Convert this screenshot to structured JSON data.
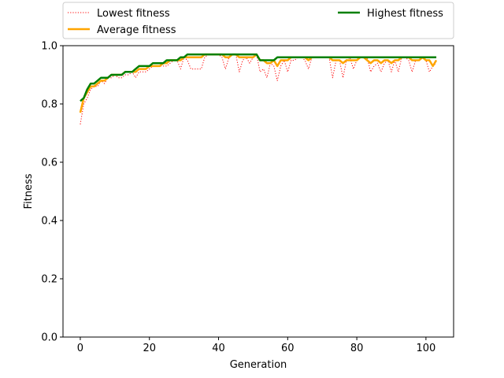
{
  "chart_data": {
    "type": "line",
    "xlabel": "Generation",
    "ylabel": "Fitness",
    "xlim": [
      -5,
      108
    ],
    "ylim": [
      0.0,
      1.0
    ],
    "xticks": [
      0,
      20,
      40,
      60,
      80,
      100
    ],
    "yticks": [
      0.0,
      0.2,
      0.4,
      0.6,
      0.8,
      1.0
    ],
    "xtick_labels": [
      "0",
      "20",
      "40",
      "60",
      "80",
      "100"
    ],
    "ytick_labels": [
      "0.0",
      "0.2",
      "0.4",
      "0.6",
      "0.8",
      "1.0"
    ],
    "grid": false,
    "legend_placement": "above plot",
    "x": [
      0,
      1,
      2,
      3,
      4,
      5,
      6,
      7,
      8,
      9,
      10,
      11,
      12,
      13,
      14,
      15,
      16,
      17,
      18,
      19,
      20,
      21,
      22,
      23,
      24,
      25,
      26,
      27,
      28,
      29,
      30,
      31,
      32,
      33,
      34,
      35,
      36,
      37,
      38,
      39,
      40,
      41,
      42,
      43,
      44,
      45,
      46,
      47,
      48,
      49,
      50,
      51,
      52,
      53,
      54,
      55,
      56,
      57,
      58,
      59,
      60,
      61,
      62,
      63,
      64,
      65,
      66,
      67,
      68,
      69,
      70,
      71,
      72,
      73,
      74,
      75,
      76,
      77,
      78,
      79,
      80,
      81,
      82,
      83,
      84,
      85,
      86,
      87,
      88,
      89,
      90,
      91,
      92,
      93,
      94,
      95,
      96,
      97,
      98,
      99,
      100,
      101,
      102,
      103
    ],
    "series": [
      {
        "name": "Lowest fitness",
        "color": "#ff0000",
        "style": "dotted",
        "values": [
          0.73,
          0.8,
          0.82,
          0.85,
          0.86,
          0.86,
          0.88,
          0.87,
          0.89,
          0.89,
          0.9,
          0.89,
          0.89,
          0.9,
          0.9,
          0.91,
          0.89,
          0.91,
          0.91,
          0.91,
          0.92,
          0.93,
          0.93,
          0.93,
          0.93,
          0.93,
          0.94,
          0.95,
          0.95,
          0.92,
          0.96,
          0.95,
          0.92,
          0.92,
          0.92,
          0.92,
          0.96,
          0.97,
          0.97,
          0.97,
          0.97,
          0.96,
          0.92,
          0.96,
          0.97,
          0.97,
          0.91,
          0.95,
          0.96,
          0.94,
          0.96,
          0.97,
          0.91,
          0.92,
          0.89,
          0.94,
          0.93,
          0.88,
          0.93,
          0.95,
          0.91,
          0.95,
          0.95,
          0.96,
          0.96,
          0.95,
          0.92,
          0.96,
          0.96,
          0.96,
          0.96,
          0.96,
          0.96,
          0.89,
          0.95,
          0.95,
          0.89,
          0.95,
          0.96,
          0.92,
          0.95,
          0.96,
          0.96,
          0.96,
          0.91,
          0.93,
          0.94,
          0.91,
          0.94,
          0.95,
          0.91,
          0.95,
          0.91,
          0.96,
          0.96,
          0.95,
          0.91,
          0.95,
          0.95,
          0.96,
          0.95,
          0.91,
          0.93,
          0.94
        ]
      },
      {
        "name": "Average fitness",
        "color": "#ffa500",
        "style": "solid",
        "values": [
          0.77,
          0.82,
          0.84,
          0.86,
          0.86,
          0.87,
          0.88,
          0.88,
          0.89,
          0.9,
          0.9,
          0.9,
          0.9,
          0.91,
          0.91,
          0.91,
          0.91,
          0.92,
          0.92,
          0.92,
          0.93,
          0.93,
          0.93,
          0.93,
          0.94,
          0.94,
          0.95,
          0.95,
          0.95,
          0.95,
          0.96,
          0.96,
          0.96,
          0.96,
          0.96,
          0.96,
          0.97,
          0.97,
          0.97,
          0.97,
          0.97,
          0.97,
          0.96,
          0.96,
          0.97,
          0.97,
          0.96,
          0.96,
          0.96,
          0.96,
          0.96,
          0.97,
          0.95,
          0.95,
          0.94,
          0.94,
          0.95,
          0.93,
          0.95,
          0.95,
          0.95,
          0.96,
          0.96,
          0.96,
          0.96,
          0.96,
          0.95,
          0.96,
          0.96,
          0.96,
          0.96,
          0.96,
          0.96,
          0.95,
          0.95,
          0.95,
          0.94,
          0.95,
          0.95,
          0.95,
          0.95,
          0.96,
          0.96,
          0.95,
          0.94,
          0.95,
          0.95,
          0.94,
          0.95,
          0.95,
          0.94,
          0.95,
          0.95,
          0.96,
          0.96,
          0.96,
          0.95,
          0.95,
          0.95,
          0.96,
          0.95,
          0.95,
          0.93,
          0.95
        ]
      },
      {
        "name": "Highest fitness",
        "color": "#008000",
        "style": "solid",
        "values": [
          0.81,
          0.82,
          0.85,
          0.87,
          0.87,
          0.88,
          0.89,
          0.89,
          0.89,
          0.9,
          0.9,
          0.9,
          0.9,
          0.91,
          0.91,
          0.91,
          0.92,
          0.93,
          0.93,
          0.93,
          0.93,
          0.94,
          0.94,
          0.94,
          0.94,
          0.95,
          0.95,
          0.95,
          0.95,
          0.96,
          0.96,
          0.97,
          0.97,
          0.97,
          0.97,
          0.97,
          0.97,
          0.97,
          0.97,
          0.97,
          0.97,
          0.97,
          0.97,
          0.97,
          0.97,
          0.97,
          0.97,
          0.97,
          0.97,
          0.97,
          0.97,
          0.97,
          0.95,
          0.95,
          0.95,
          0.95,
          0.95,
          0.96,
          0.96,
          0.96,
          0.96,
          0.96,
          0.96,
          0.96,
          0.96,
          0.96,
          0.96,
          0.96,
          0.96,
          0.96,
          0.96,
          0.96,
          0.96,
          0.96,
          0.96,
          0.96,
          0.96,
          0.96,
          0.96,
          0.96,
          0.96,
          0.96,
          0.96,
          0.96,
          0.96,
          0.96,
          0.96,
          0.96,
          0.96,
          0.96,
          0.96,
          0.96,
          0.96,
          0.96,
          0.96,
          0.96,
          0.96,
          0.96,
          0.96,
          0.96,
          0.96,
          0.96,
          0.96,
          0.96
        ]
      }
    ]
  }
}
